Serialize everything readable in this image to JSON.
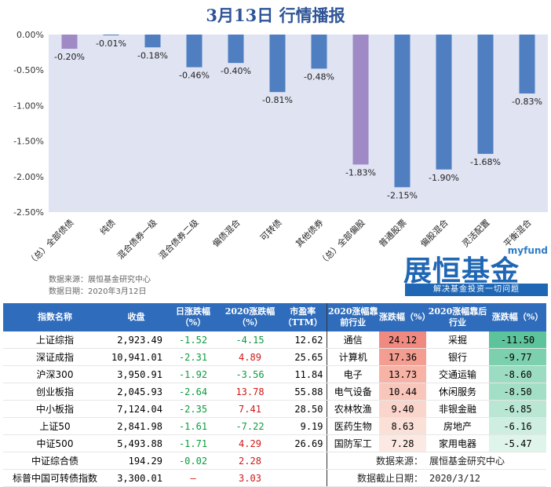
{
  "title": "3月13日  行情播报",
  "chart_data": {
    "type": "bar",
    "categories": [
      "（总）全部债债",
      "纯债",
      "混合债券一级",
      "混合债券二级",
      "偏债混合",
      "可转债",
      "其他债券",
      "（总）全部偏股",
      "普通股票",
      "偏股混合",
      "灵活配置",
      "平衡混合"
    ],
    "values": [
      -0.2,
      -0.01,
      -0.18,
      -0.46,
      -0.4,
      -0.81,
      -0.48,
      -1.83,
      -2.15,
      -1.9,
      -1.68,
      -0.83
    ],
    "value_labels": [
      "-0.20%",
      "-0.01%",
      "-0.18%",
      "-0.46%",
      "-0.40%",
      "-0.81%",
      "-0.48%",
      "-1.83%",
      "-2.15%",
      "-1.90%",
      "-1.68%",
      "-0.83%"
    ],
    "bar_colors": [
      "#a08ac6",
      "#4f7fc0",
      "#4f7fc0",
      "#4f7fc0",
      "#4f7fc0",
      "#4f7fc0",
      "#4f7fc0",
      "#a08ac6",
      "#4f7fc0",
      "#4f7fc0",
      "#4f7fc0",
      "#4f7fc0"
    ],
    "yticks": [
      "0.00%",
      "-0.50%",
      "-1.00%",
      "-1.50%",
      "-2.00%",
      "-2.50%"
    ],
    "ylim": [
      -2.5,
      0
    ],
    "plot_background": "#dfe3f2"
  },
  "source": {
    "line1": "数据来源：展恒基金研究中心",
    "line2": "数据日期：2020年3月12日"
  },
  "logo": {
    "en": "myfund",
    "cn": "展恒基金",
    "slogan": "解决基金投资一切问题"
  },
  "table": {
    "headers": [
      "指数名称",
      "收盘",
      "日涨跌幅（%）",
      "2020涨跌幅（%）",
      "市盈率（TTM）",
      "2020涨幅靠前行业",
      "涨跌幅（%）",
      "2020涨幅靠后行业",
      "涨跌幅（%）"
    ],
    "rows": [
      {
        "name": "上证综指",
        "close": "2,923.49",
        "day": "-1.52",
        "ytd": "-4.15",
        "pe": "12.62",
        "top_ind": "通信",
        "top_chg": "24.12",
        "bot_ind": "采掘",
        "bot_chg": "-11.50"
      },
      {
        "name": "深证成指",
        "close": "10,941.01",
        "day": "-2.31",
        "ytd": "4.89",
        "pe": "25.65",
        "top_ind": "计算机",
        "top_chg": "17.36",
        "bot_ind": "银行",
        "bot_chg": "-9.77"
      },
      {
        "name": "沪深300",
        "close": "3,950.91",
        "day": "-1.92",
        "ytd": "-3.56",
        "pe": "11.84",
        "top_ind": "电子",
        "top_chg": "13.73",
        "bot_ind": "交通运输",
        "bot_chg": "-8.60"
      },
      {
        "name": "创业板指",
        "close": "2,045.93",
        "day": "-2.64",
        "ytd": "13.78",
        "pe": "55.88",
        "top_ind": "电气设备",
        "top_chg": "10.44",
        "bot_ind": "休闲服务",
        "bot_chg": "-8.50"
      },
      {
        "name": "中小板指",
        "close": "7,124.04",
        "day": "-2.35",
        "ytd": "7.41",
        "pe": "28.50",
        "top_ind": "农林牧渔",
        "top_chg": "9.40",
        "bot_ind": "非银金融",
        "bot_chg": "-6.85"
      },
      {
        "name": "上证50",
        "close": "2,841.98",
        "day": "-1.61",
        "ytd": "-7.22",
        "pe": "9.19",
        "top_ind": "医药生物",
        "top_chg": "8.63",
        "bot_ind": "房地产",
        "bot_chg": "-6.16"
      },
      {
        "name": "中证500",
        "close": "5,493.88",
        "day": "-1.71",
        "ytd": "4.29",
        "pe": "26.69",
        "top_ind": "国防军工",
        "top_chg": "7.28",
        "bot_ind": "家用电器",
        "bot_chg": "-5.47"
      },
      {
        "name": "中证综合债",
        "close": "194.29",
        "day": "-0.02",
        "ytd": "2.28",
        "pe": "",
        "top_ind": "",
        "top_chg": "",
        "bot_ind": "",
        "bot_chg": ""
      },
      {
        "name": "标普中国可转债指数",
        "close": "3,300.01",
        "day": "–",
        "ytd": "3.03",
        "pe": "",
        "top_ind": "",
        "top_chg": "",
        "bot_ind": "",
        "bot_chg": ""
      }
    ],
    "note_source_label": "数据来源：",
    "note_source_value": "展恒基金研究中心",
    "note_date_label": "数据截止日期：",
    "note_date_value": "2020/3/12",
    "colors": {
      "top_scale": [
        "#f08a80",
        "#f39e91",
        "#f6b3a6",
        "#f8c6bb",
        "#fad5cb",
        "#fbe0d8",
        "#fce9e3"
      ],
      "bot_scale": [
        "#5cc39a",
        "#7dd0ae",
        "#9cdcc2",
        "#a3dfc6",
        "#b9e7d4",
        "#cdeee0",
        "#dff4ea"
      ]
    }
  }
}
